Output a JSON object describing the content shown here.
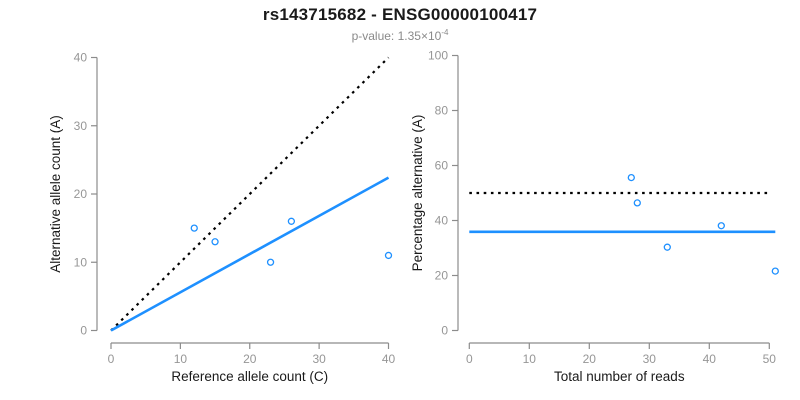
{
  "header": {
    "title": "rs143715682 - ENSG00000100417",
    "p_value_text": "p-value: 1.35×10",
    "p_value_exp": "-4"
  },
  "colors": {
    "fit_line_blue": "#1E90FF",
    "point_blue": "#1E90FF",
    "reference_line_black": "#000000",
    "axis_gray": "#8C8C8C",
    "tick_label_gray": "#969696",
    "axis_title_black": "#1a1a1a"
  },
  "chart_data": [
    {
      "type": "scatter",
      "name": "allele-count-scatter",
      "xlabel": "Reference allele count (C)",
      "ylabel": "Alternative allele count (A)",
      "xlim": [
        0,
        40
      ],
      "ylim": [
        0,
        40
      ],
      "xticks": [
        0,
        10,
        20,
        30,
        40
      ],
      "yticks": [
        0,
        10,
        20,
        30,
        40
      ],
      "grid": false,
      "legend": "none",
      "points": [
        [
          12,
          15
        ],
        [
          15,
          13
        ],
        [
          23,
          10
        ],
        [
          26,
          16
        ],
        [
          40,
          11
        ]
      ],
      "lines": [
        {
          "name": "identity-line",
          "style": "dotted",
          "color": "#000000",
          "from": [
            0,
            0
          ],
          "to": [
            40,
            40
          ]
        },
        {
          "name": "fit-line",
          "style": "solid",
          "color": "#1E90FF",
          "from": [
            0,
            0
          ],
          "to": [
            40,
            22.4
          ]
        }
      ]
    },
    {
      "type": "scatter",
      "name": "percentage-alternative-scatter",
      "xlabel": "Total number of reads",
      "ylabel": "Percentage alternative (A)",
      "xlim": [
        0,
        50
      ],
      "ylim": [
        0,
        100
      ],
      "xticks": [
        0,
        10,
        20,
        30,
        40,
        50
      ],
      "yticks": [
        0,
        20,
        40,
        60,
        80,
        100
      ],
      "grid": false,
      "legend": "none",
      "points": [
        [
          27,
          55.6
        ],
        [
          28,
          46.4
        ],
        [
          33,
          30.3
        ],
        [
          42,
          38.1
        ],
        [
          51,
          21.6
        ]
      ],
      "lines": [
        {
          "name": "fifty-percent-line",
          "style": "dotted",
          "color": "#000000",
          "from": [
            0,
            50
          ],
          "to": [
            50,
            50
          ]
        },
        {
          "name": "mean-percentage-line",
          "style": "solid",
          "color": "#1E90FF",
          "from": [
            0,
            35.9
          ],
          "to": [
            51,
            35.9
          ]
        }
      ]
    }
  ]
}
